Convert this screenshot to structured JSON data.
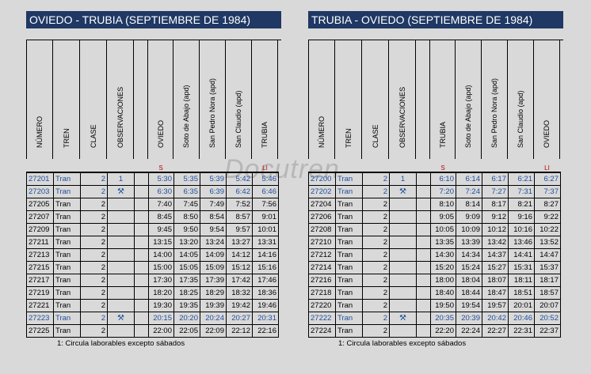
{
  "panels": [
    {
      "title": "OVIEDO - TRUBIA  (SEPTIEMBRE DE 1984)",
      "headers": [
        "NÚMERO",
        "TREN",
        "CLASE",
        "OBSERVACIONES",
        "",
        "OVIEDO",
        "Soto de Abajo  (apd)",
        "San Pedro Nora  (apd)",
        "San Claudio  (apd)",
        "TRUBIA"
      ],
      "markers": [
        "S",
        "LI"
      ],
      "rows": [
        {
          "num": "27201",
          "tren": "Tran",
          "clase": "2",
          "obs": "1",
          "icon": "",
          "times": [
            "5:30",
            "5:35",
            "5:39",
            "5:42",
            "5:46"
          ],
          "blue": true
        },
        {
          "num": "27203",
          "tren": "Tran",
          "clase": "2",
          "obs": "",
          "icon": "tools-icon",
          "times": [
            "6:30",
            "6:35",
            "6:39",
            "6:42",
            "6:46"
          ],
          "blue": true
        },
        {
          "num": "27205",
          "tren": "Tran",
          "clase": "2",
          "obs": "",
          "icon": "",
          "times": [
            "7:40",
            "7:45",
            "7:49",
            "7:52",
            "7:56"
          ],
          "blue": false
        },
        {
          "num": "27207",
          "tren": "Tran",
          "clase": "2",
          "obs": "",
          "icon": "",
          "times": [
            "8:45",
            "8:50",
            "8:54",
            "8:57",
            "9:01"
          ],
          "blue": false
        },
        {
          "num": "27209",
          "tren": "Tran",
          "clase": "2",
          "obs": "",
          "icon": "",
          "times": [
            "9:45",
            "9:50",
            "9:54",
            "9:57",
            "10:01"
          ],
          "blue": false
        },
        {
          "num": "27211",
          "tren": "Tran",
          "clase": "2",
          "obs": "",
          "icon": "",
          "times": [
            "13:15",
            "13:20",
            "13:24",
            "13:27",
            "13:31"
          ],
          "blue": false
        },
        {
          "num": "27213",
          "tren": "Tran",
          "clase": "2",
          "obs": "",
          "icon": "",
          "times": [
            "14:00",
            "14:05",
            "14:09",
            "14:12",
            "14:16"
          ],
          "blue": false
        },
        {
          "num": "27215",
          "tren": "Tran",
          "clase": "2",
          "obs": "",
          "icon": "",
          "times": [
            "15:00",
            "15:05",
            "15:09",
            "15:12",
            "15:16"
          ],
          "blue": false
        },
        {
          "num": "27217",
          "tren": "Tran",
          "clase": "2",
          "obs": "",
          "icon": "",
          "times": [
            "17:30",
            "17:35",
            "17:39",
            "17:42",
            "17:46"
          ],
          "blue": false
        },
        {
          "num": "27219",
          "tren": "Tran",
          "clase": "2",
          "obs": "",
          "icon": "",
          "times": [
            "18:20",
            "18:25",
            "18:29",
            "18:32",
            "18:36"
          ],
          "blue": false
        },
        {
          "num": "27221",
          "tren": "Tran",
          "clase": "2",
          "obs": "",
          "icon": "",
          "times": [
            "19:30",
            "19:35",
            "19:39",
            "19:42",
            "19:46"
          ],
          "blue": false
        },
        {
          "num": "27223",
          "tren": "Tran",
          "clase": "2",
          "obs": "",
          "icon": "tools-icon",
          "times": [
            "20:15",
            "20:20",
            "20:24",
            "20:27",
            "20:31"
          ],
          "blue": true
        },
        {
          "num": "27225",
          "tren": "Tran",
          "clase": "2",
          "obs": "",
          "icon": "",
          "times": [
            "22:00",
            "22:05",
            "22:09",
            "22:12",
            "22:16"
          ],
          "blue": false
        }
      ],
      "note": "1:  Circula laborables excepto sábados"
    },
    {
      "title": "TRUBIA - OVIEDO  (SEPTIEMBRE DE 1984)",
      "headers": [
        "NÚMERO",
        "TREN",
        "CLASE",
        "OBSERVACIONES",
        "",
        "TRUBIA",
        "Soto de Abajo  (apd)",
        "San Pedro Nora  (apd)",
        "San Claudio  (apd)",
        "OVIEDO"
      ],
      "markers": [
        "S",
        "LI"
      ],
      "rows": [
        {
          "num": "27200",
          "tren": "Tran",
          "clase": "2",
          "obs": "1",
          "icon": "",
          "times": [
            "6:10",
            "6:14",
            "6:17",
            "6:21",
            "6:27"
          ],
          "blue": true
        },
        {
          "num": "27202",
          "tren": "Tran",
          "clase": "2",
          "obs": "",
          "icon": "tools-icon",
          "times": [
            "7:20",
            "7:24",
            "7:27",
            "7:31",
            "7:37"
          ],
          "blue": true
        },
        {
          "num": "27204",
          "tren": "Tran",
          "clase": "2",
          "obs": "",
          "icon": "",
          "times": [
            "8:10",
            "8:14",
            "8:17",
            "8:21",
            "8:27"
          ],
          "blue": false
        },
        {
          "num": "27206",
          "tren": "Tran",
          "clase": "2",
          "obs": "",
          "icon": "",
          "times": [
            "9:05",
            "9:09",
            "9:12",
            "9:16",
            "9:22"
          ],
          "blue": false
        },
        {
          "num": "27208",
          "tren": "Tran",
          "clase": "2",
          "obs": "",
          "icon": "",
          "times": [
            "10:05",
            "10:09",
            "10:12",
            "10:16",
            "10:22"
          ],
          "blue": false
        },
        {
          "num": "27210",
          "tren": "Tran",
          "clase": "2",
          "obs": "",
          "icon": "",
          "times": [
            "13:35",
            "13:39",
            "13:42",
            "13:46",
            "13:52"
          ],
          "blue": false
        },
        {
          "num": "27212",
          "tren": "Tran",
          "clase": "2",
          "obs": "",
          "icon": "",
          "times": [
            "14:30",
            "14:34",
            "14:37",
            "14:41",
            "14:47"
          ],
          "blue": false
        },
        {
          "num": "27214",
          "tren": "Tran",
          "clase": "2",
          "obs": "",
          "icon": "",
          "times": [
            "15:20",
            "15:24",
            "15:27",
            "15:31",
            "15:37"
          ],
          "blue": false
        },
        {
          "num": "27216",
          "tren": "Tran",
          "clase": "2",
          "obs": "",
          "icon": "",
          "times": [
            "18:00",
            "18:04",
            "18:07",
            "18:11",
            "18:17"
          ],
          "blue": false
        },
        {
          "num": "27218",
          "tren": "Tran",
          "clase": "2",
          "obs": "",
          "icon": "",
          "times": [
            "18:40",
            "18:44",
            "18:47",
            "18:51",
            "18:57"
          ],
          "blue": false
        },
        {
          "num": "27220",
          "tren": "Tran",
          "clase": "2",
          "obs": "",
          "icon": "",
          "times": [
            "19:50",
            "19:54",
            "19:57",
            "20:01",
            "20:07"
          ],
          "blue": false
        },
        {
          "num": "27222",
          "tren": "Tran",
          "clase": "2",
          "obs": "",
          "icon": "tools-icon",
          "times": [
            "20:35",
            "20:39",
            "20:42",
            "20:46",
            "20:52"
          ],
          "blue": true
        },
        {
          "num": "27224",
          "tren": "Tran",
          "clase": "2",
          "obs": "",
          "icon": "",
          "times": [
            "22:20",
            "22:24",
            "22:27",
            "22:31",
            "22:37"
          ],
          "blue": false
        }
      ],
      "note": "1:  Circula laborables excepto sábados"
    }
  ],
  "watermark": "Docutren",
  "colors": {
    "title_bg": "#1f3864",
    "blue_row": "#1f4e9c",
    "marker": "#c00000"
  }
}
